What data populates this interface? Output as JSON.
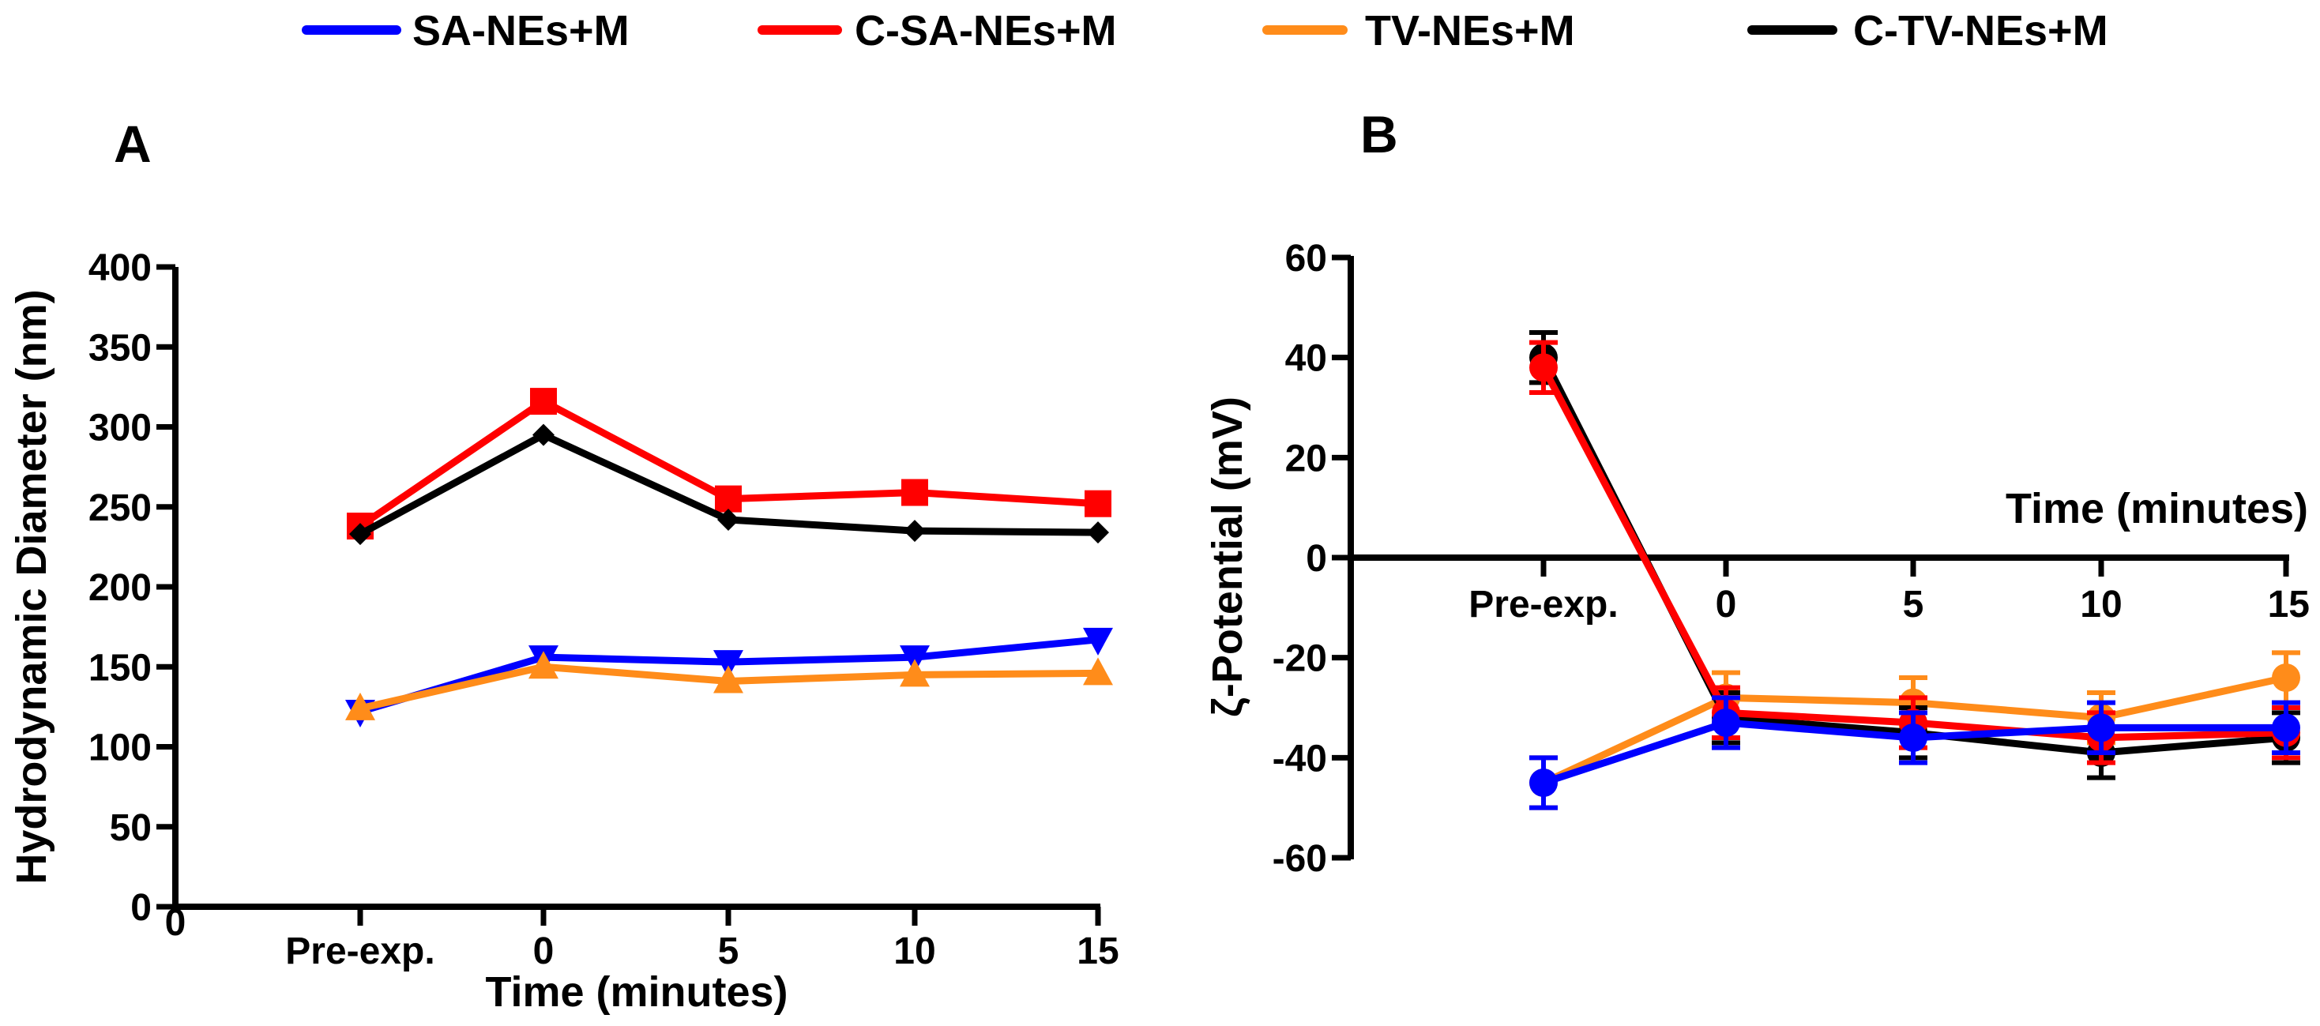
{
  "legend": [
    {
      "label": "SA-NEs+M",
      "color": "#0000ff"
    },
    {
      "label": "C-SA-NEs+M",
      "color": "#ff0000"
    },
    {
      "label": "TV-NEs+M",
      "color": "#ff8c1a"
    },
    {
      "label": "C-TV-NEs+M",
      "color": "#000000"
    }
  ],
  "chart_data": [
    {
      "panel": "A",
      "type": "line",
      "title": "",
      "xlabel": "Time (minutes)",
      "ylabel": "Hydrodynamic Diameter (nm)",
      "x_axis_zero_label": "0",
      "categories": [
        "Pre-exp.",
        "0",
        "5",
        "10",
        "15"
      ],
      "ylim": [
        0,
        400
      ],
      "yticks": [
        "0",
        "50",
        "100",
        "150",
        "200",
        "250",
        "300",
        "350",
        "400"
      ],
      "series": [
        {
          "name": "SA-NEs+M",
          "color": "#0000ff",
          "marker": "triangle-down",
          "values": [
            122,
            156,
            153,
            156,
            167
          ]
        },
        {
          "name": "C-SA-NEs+M",
          "color": "#ff0000",
          "marker": "square",
          "values": [
            238,
            316,
            255,
            259,
            252
          ]
        },
        {
          "name": "TV-NEs+M",
          "color": "#ff8c1a",
          "marker": "triangle-up",
          "values": [
            124,
            150,
            141,
            145,
            146
          ]
        },
        {
          "name": "C-TV-NEs+M",
          "color": "#000000",
          "marker": "diamond",
          "values": [
            233,
            295,
            242,
            235,
            234
          ]
        }
      ]
    },
    {
      "panel": "B",
      "type": "line",
      "title": "",
      "xlabel": "Time (minutes)",
      "ylabel": "ζ-Potential (mV)",
      "categories": [
        "Pre-exp.",
        "0",
        "5",
        "10",
        "15"
      ],
      "ylim": [
        -60,
        60
      ],
      "yticks": [
        "-60",
        "-40",
        "-20",
        "0",
        "20",
        "40",
        "60"
      ],
      "series": [
        {
          "name": "TV-NEs+M",
          "color": "#ff8c1a",
          "marker": "circle",
          "values": [
            -45,
            -28,
            -29,
            -32,
            -24
          ],
          "errors": [
            5,
            5,
            5,
            5,
            5
          ]
        },
        {
          "name": "C-TV-NEs+M",
          "color": "#000000",
          "marker": "circle",
          "values": [
            40,
            -32,
            -35,
            -39,
            -36
          ],
          "errors": [
            5,
            5,
            5,
            5,
            5
          ]
        },
        {
          "name": "C-SA-NEs+M",
          "color": "#ff0000",
          "marker": "circle",
          "values": [
            38,
            -31,
            -33,
            -36,
            -35
          ],
          "errors": [
            5,
            5,
            5,
            5,
            5
          ]
        },
        {
          "name": "SA-NEs+M",
          "color": "#0000ff",
          "marker": "circle",
          "values": [
            -45,
            -33,
            -36,
            -34,
            -34
          ],
          "errors": [
            5,
            5,
            5,
            5,
            5
          ]
        }
      ]
    }
  ]
}
